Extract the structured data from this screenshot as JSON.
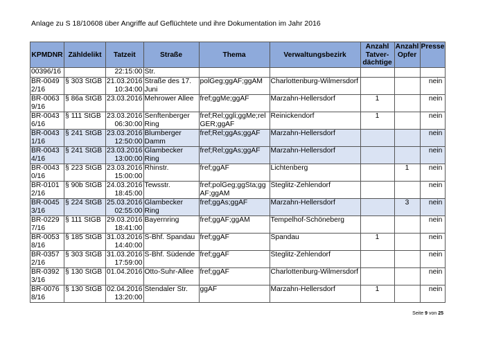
{
  "title": "Anlage zu S 18/10608 über Angriffe auf Geflüchtete und ihre Dokumentation im Jahr 2016",
  "colors": {
    "header": "#8eaadb",
    "highlight": "#dae3f3"
  },
  "headers": [
    "KPMDNR",
    "Zähldelikt",
    "Tatzeit",
    "Straße",
    "Thema",
    "Verwaltungsbezirk",
    "Anzahl Tatver-dächtige",
    "Anzahl Opfer",
    "Presse"
  ],
  "rows": [
    {
      "id": "00396/16",
      "delikt": "",
      "date": "",
      "time": "22:15:00",
      "street": "Str.",
      "thema": "",
      "bezirk": "",
      "tv": "",
      "opfer": "",
      "presse": ""
    },
    {
      "id": "BR-00492/16",
      "delikt": "§ 303 StGB",
      "date": "21.03.2016",
      "time": "10:34:00",
      "street": "Straße des 17. Juni",
      "thema": "polGeg;ggAF;ggAM",
      "bezirk": "Charlottenburg-Wilmersdorf",
      "tv": "",
      "opfer": "",
      "presse": "nein"
    },
    {
      "id": "BR-00639/16",
      "delikt": "§ 86a StGB",
      "date": "23.03.2016",
      "time": "",
      "street": "Mehrower Allee",
      "thema": "fref;ggMe;ggAF",
      "bezirk": "Marzahn-Hellersdorf",
      "tv": "1",
      "opfer": "",
      "presse": "nein"
    },
    {
      "id": "BR-00436/16",
      "delikt": "§ 111 StGB",
      "date": "23.03.2016",
      "time": "06:30:00",
      "street": "Senftenberger Ring",
      "thema": "fref;Rel;ggli;ggMe;relGER;ggAF",
      "bezirk": "Reinickendorf",
      "tv": "1",
      "opfer": "",
      "presse": "nein"
    },
    {
      "id": "BR-00431/16",
      "delikt": "§ 241 StGB",
      "date": "23.03.2016",
      "time": "12:50:00",
      "street": "Blumberger Damm",
      "thema": "fref;Rel;ggAs;ggAF",
      "bezirk": "Marzahn-Hellersdorf",
      "tv": "",
      "opfer": "",
      "presse": "nein",
      "hl": true
    },
    {
      "id": "BR-00434/16",
      "delikt": "§ 241 StGB",
      "date": "23.03.2016",
      "time": "13:00:00",
      "street": "Glambecker Ring",
      "thema": "fref;Rel;ggAs;ggAF",
      "bezirk": "Marzahn-Hellersdorf",
      "tv": "",
      "opfer": "",
      "presse": "nein",
      "hl": true
    },
    {
      "id": "BR-00430/16",
      "delikt": "§ 223 StGB",
      "date": "23.03.2016",
      "time": "15:00:00",
      "street": "Rhinstr.",
      "thema": "fref;ggAF",
      "bezirk": "Lichtenberg",
      "tv": "",
      "opfer": "1",
      "presse": "nein"
    },
    {
      "id": "BR-01012/16",
      "delikt": "§ 90b StGB",
      "date": "24.03.2016",
      "time": "18:45:00",
      "street": "Tewsstr.",
      "thema": "fref;polGeg;ggSta;ggAF;ggAM",
      "bezirk": "Steglitz-Zehlendorf",
      "tv": "",
      "opfer": "",
      "presse": "nein"
    },
    {
      "id": "BR-00453/16",
      "delikt": "§ 224 StGB",
      "date": "25.03.2016",
      "time": "02:55:00",
      "street": "Glambecker Ring",
      "thema": "fref;ggAs;ggAF",
      "bezirk": "Marzahn-Hellersdorf",
      "tv": "",
      "opfer": "3",
      "presse": "nein",
      "hl": true
    },
    {
      "id": "BR-02297/16",
      "delikt": "§ 111 StGB",
      "date": "29.03.2016",
      "time": "18:41:00",
      "street": "Bayernring",
      "thema": "fref;ggAF;ggAM",
      "bezirk": "Tempelhof-Schöneberg",
      "tv": "",
      "opfer": "",
      "presse": "nein"
    },
    {
      "id": "BR-00538/16",
      "delikt": "§ 185 StGB",
      "date": "31.03.2016",
      "time": "14:40:00",
      "street": "S-Bhf. Spandau",
      "thema": "fref;ggAF",
      "bezirk": "Spandau",
      "tv": "1",
      "opfer": "",
      "presse": "nein"
    },
    {
      "id": "BR-03572/16",
      "delikt": "§ 303 StGB",
      "date": "31.03.2016",
      "time": "17:59:00",
      "street": "S-Bhf. Südende",
      "thema": "fref;ggAF",
      "bezirk": "Steglitz-Zehlendorf",
      "tv": "",
      "opfer": "",
      "presse": "nein"
    },
    {
      "id": "BR-03923/16",
      "delikt": "§ 130 StGB",
      "date": "01.04.2016",
      "time": "",
      "street": "Otto-Suhr-Allee",
      "thema": "fref;ggAF",
      "bezirk": "Charlottenburg-Wilmersdorf",
      "tv": "",
      "opfer": "",
      "presse": "nein"
    },
    {
      "id": "BR-00768/16",
      "delikt": "§ 130 StGB",
      "date": "02.04.2016",
      "time": "13:20:00",
      "street": "Stendaler Str.",
      "thema": "ggAF",
      "bezirk": "Marzahn-Hellersdorf",
      "tv": "1",
      "opfer": "",
      "presse": "nein"
    }
  ],
  "footer": {
    "prefix": "Seite",
    "page": "9",
    "sep": "von",
    "total": "25"
  }
}
